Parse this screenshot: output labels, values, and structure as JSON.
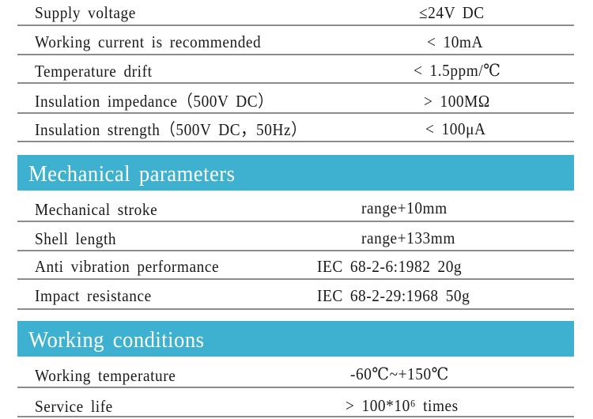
{
  "electrical_rows": [
    {
      "label": "Supply voltage",
      "value": "≤24V DC"
    },
    {
      "label": "Working current is recommended",
      "value": "< 10mA"
    },
    {
      "label": "Temperature drift",
      "value": "< 1.5ppm/℃"
    },
    {
      "label": "Insulation impedance（500V DC）",
      "value": "> 100MΩ"
    },
    {
      "label": "Insulation strength（500V DC，50Hz）",
      "value": "< 100μA"
    }
  ],
  "mechanical": {
    "title": "Mechanical parameters",
    "rows": [
      {
        "label": "Mechanical stroke",
        "value": "range+10mm"
      },
      {
        "label": "Shell length",
        "value": "range+133mm"
      },
      {
        "label": "Anti vibration performance",
        "value": "IEC 68-2-6:1982 20g"
      },
      {
        "label": "Impact resistance",
        "value": "IEC 68-2-29:1968 50g"
      }
    ]
  },
  "working": {
    "title": "Working conditions",
    "rows": [
      {
        "label": "Working temperature",
        "value": "-60℃~+150℃"
      },
      {
        "label": "Service life",
        "value": "> 100*10⁶ times"
      }
    ]
  },
  "colors": {
    "section_band": "#3db1cf",
    "divider": "#8c8c8c"
  }
}
